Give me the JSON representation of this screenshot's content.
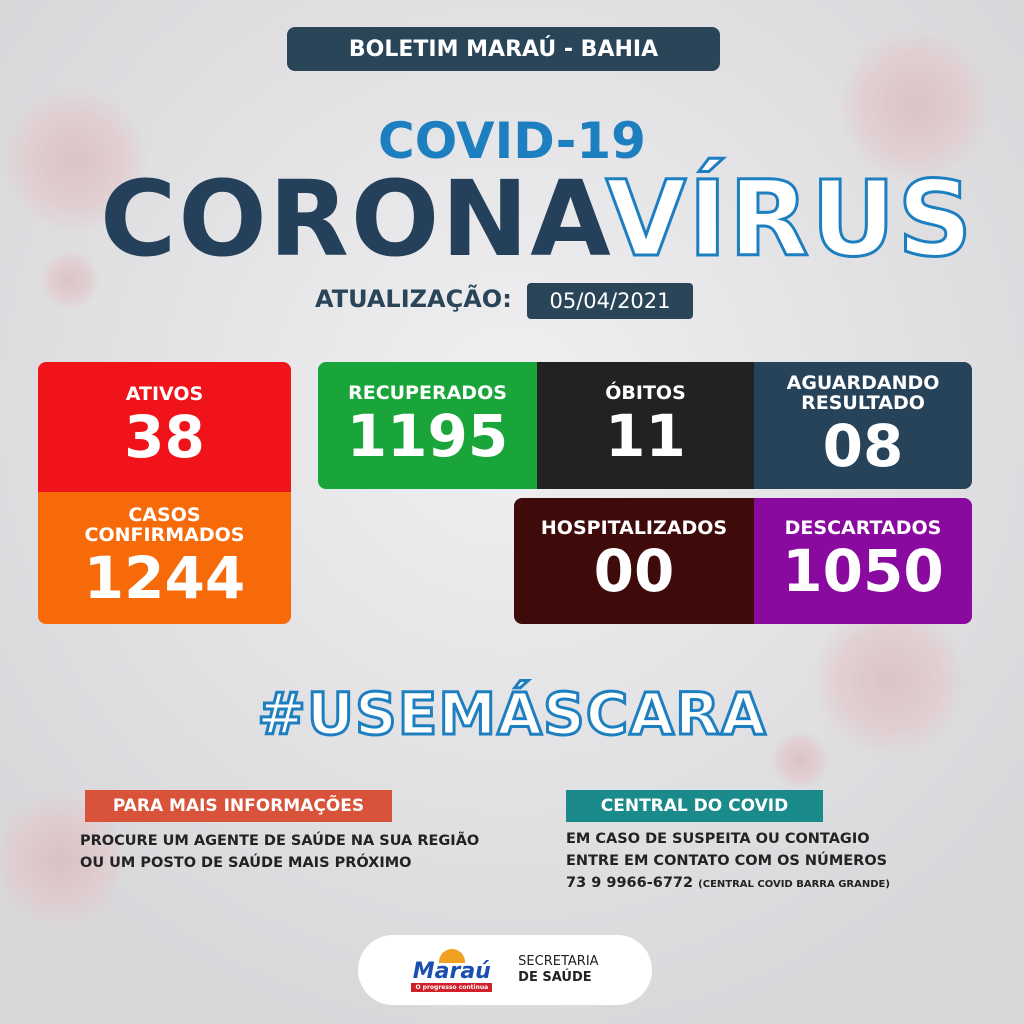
{
  "header": {
    "title": "BOLETIM MARAÚ - BAHIA",
    "covid": "COVID-19",
    "corona": "CORONA",
    "virus": "VÍRUS",
    "update_label": "ATUALIZAÇÃO:",
    "update_date": "05/04/2021"
  },
  "stats": {
    "ativos": {
      "label": "ATIVOS",
      "value": "38",
      "color": "#f0141a"
    },
    "confirmados": {
      "label": "CASOS CONFIRMADOS",
      "value": "1244",
      "color": "#f76a0a"
    },
    "recuperados": {
      "label": "RECUPERADOS",
      "value": "1195",
      "color": "#1aa53a"
    },
    "obitos": {
      "label": "ÓBITOS",
      "value": "11",
      "color": "#222222"
    },
    "aguardando": {
      "label": "AGUARDANDO RESULTADO",
      "value": "08",
      "color": "#27435a"
    },
    "hospitalizados": {
      "label": "HOSPITALIZADOS",
      "value": "00",
      "color": "#3e0a0a"
    },
    "descartados": {
      "label": "DESCARTADOS",
      "value": "1050",
      "color": "#8a0aa0"
    }
  },
  "hashtag": "#USEMÁSCARA",
  "info": {
    "title": "PARA MAIS INFORMAÇÕES",
    "line1": "PROCURE UM AGENTE DE SAÚDE NA SUA REGIÃO",
    "line2": "OU UM POSTO DE SAÚDE MAIS PRÓXIMO"
  },
  "central": {
    "title": "CENTRAL DO COVID",
    "line1": "EM CASO DE SUSPEITA OU CONTAGIO",
    "line2": "ENTRE EM CONTATO COM OS NÚMEROS",
    "phone": "73 9 9966-6772",
    "phone_note": "(CENTRAL COVID BARRA GRANDE)"
  },
  "footer": {
    "logo": "Maraú",
    "logo_slogan": "O progresso continua",
    "dept1": "SECRETARIA",
    "dept2": "DE SAÚDE"
  }
}
